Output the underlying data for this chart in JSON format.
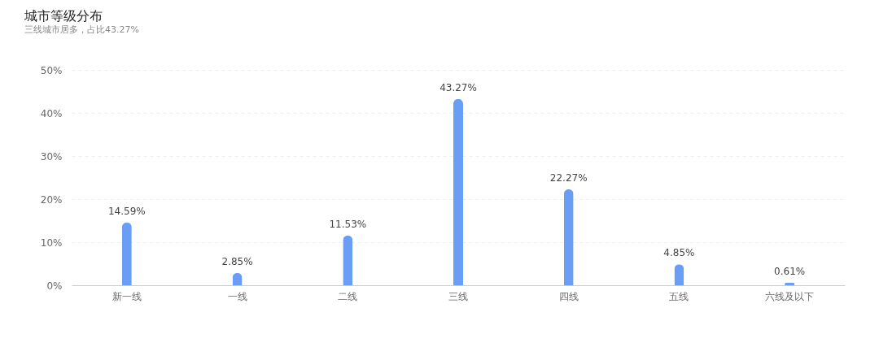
{
  "chart_data": {
    "type": "bar",
    "title": "城市等级分布",
    "subtitle": "三线城市居多，占比43.27%",
    "categories": [
      "新一线",
      "一线",
      "二线",
      "三线",
      "四线",
      "五线",
      "六线及以下"
    ],
    "values": [
      14.59,
      2.85,
      11.53,
      43.27,
      22.27,
      4.85,
      0.61
    ],
    "value_labels": [
      "14.59%",
      "2.85%",
      "11.53%",
      "43.27%",
      "22.27%",
      "4.85%",
      "0.61%"
    ],
    "color": "#6a9ef6",
    "ylim": [
      0,
      50
    ],
    "yticks": [
      {
        "value": 0,
        "label": "0%"
      },
      {
        "value": 10,
        "label": "10%"
      },
      {
        "value": 20,
        "label": "20%"
      },
      {
        "value": 30,
        "label": "30%"
      },
      {
        "value": 40,
        "label": "40%"
      },
      {
        "value": 50,
        "label": "50%"
      }
    ],
    "grid": "y"
  }
}
